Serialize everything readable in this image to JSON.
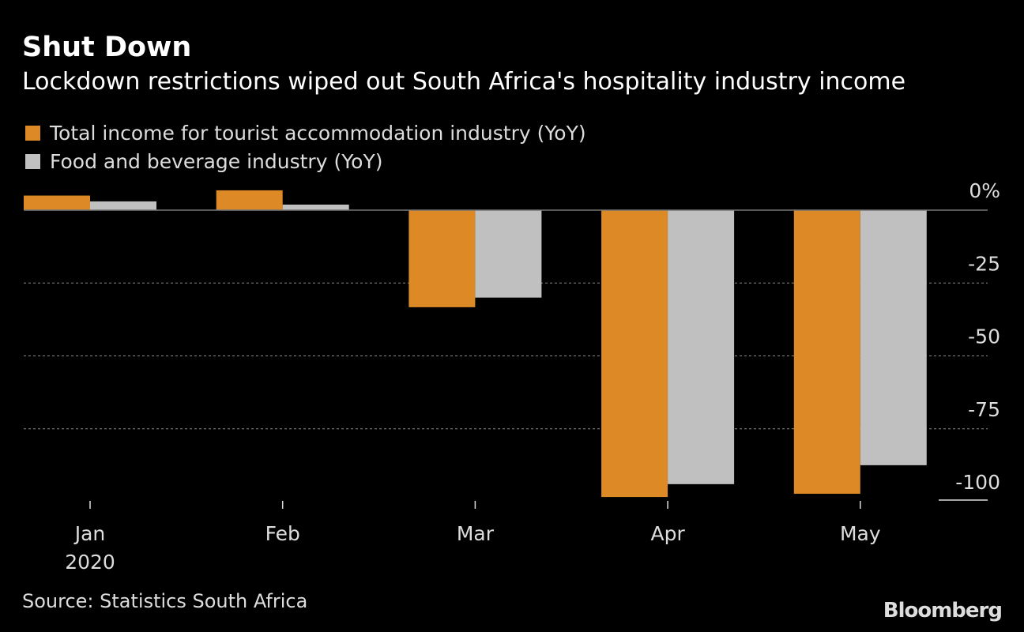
{
  "title": "Shut Down",
  "subtitle": "Lockdown restrictions wiped out South Africa's hospitality industry income",
  "source": "Source: Statistics South Africa",
  "logo": "Bloomberg",
  "chart_data": {
    "type": "bar",
    "categories": [
      "Jan",
      "Feb",
      "Mar",
      "Apr",
      "May"
    ],
    "x_sublabel": "2020",
    "series": [
      {
        "name": "Total income for tourist accommodation industry (YoY)",
        "color": "#dd8a26",
        "values": [
          5,
          6.8,
          -33.3,
          -98.4,
          -97.3
        ]
      },
      {
        "name": "Food and beverage industry (YoY)",
        "color": "#c0c0c0",
        "values": [
          3,
          1.9,
          -30,
          -94,
          -87.5
        ]
      }
    ],
    "yticks": [
      {
        "v": 0,
        "label": "0%"
      },
      {
        "v": -25,
        "label": "-25"
      },
      {
        "v": -50,
        "label": "-50"
      },
      {
        "v": -75,
        "label": "-75"
      },
      {
        "v": -100,
        "label": "-100"
      }
    ],
    "ylim": [
      -100,
      5
    ],
    "grid": true,
    "legend": "top-left"
  }
}
